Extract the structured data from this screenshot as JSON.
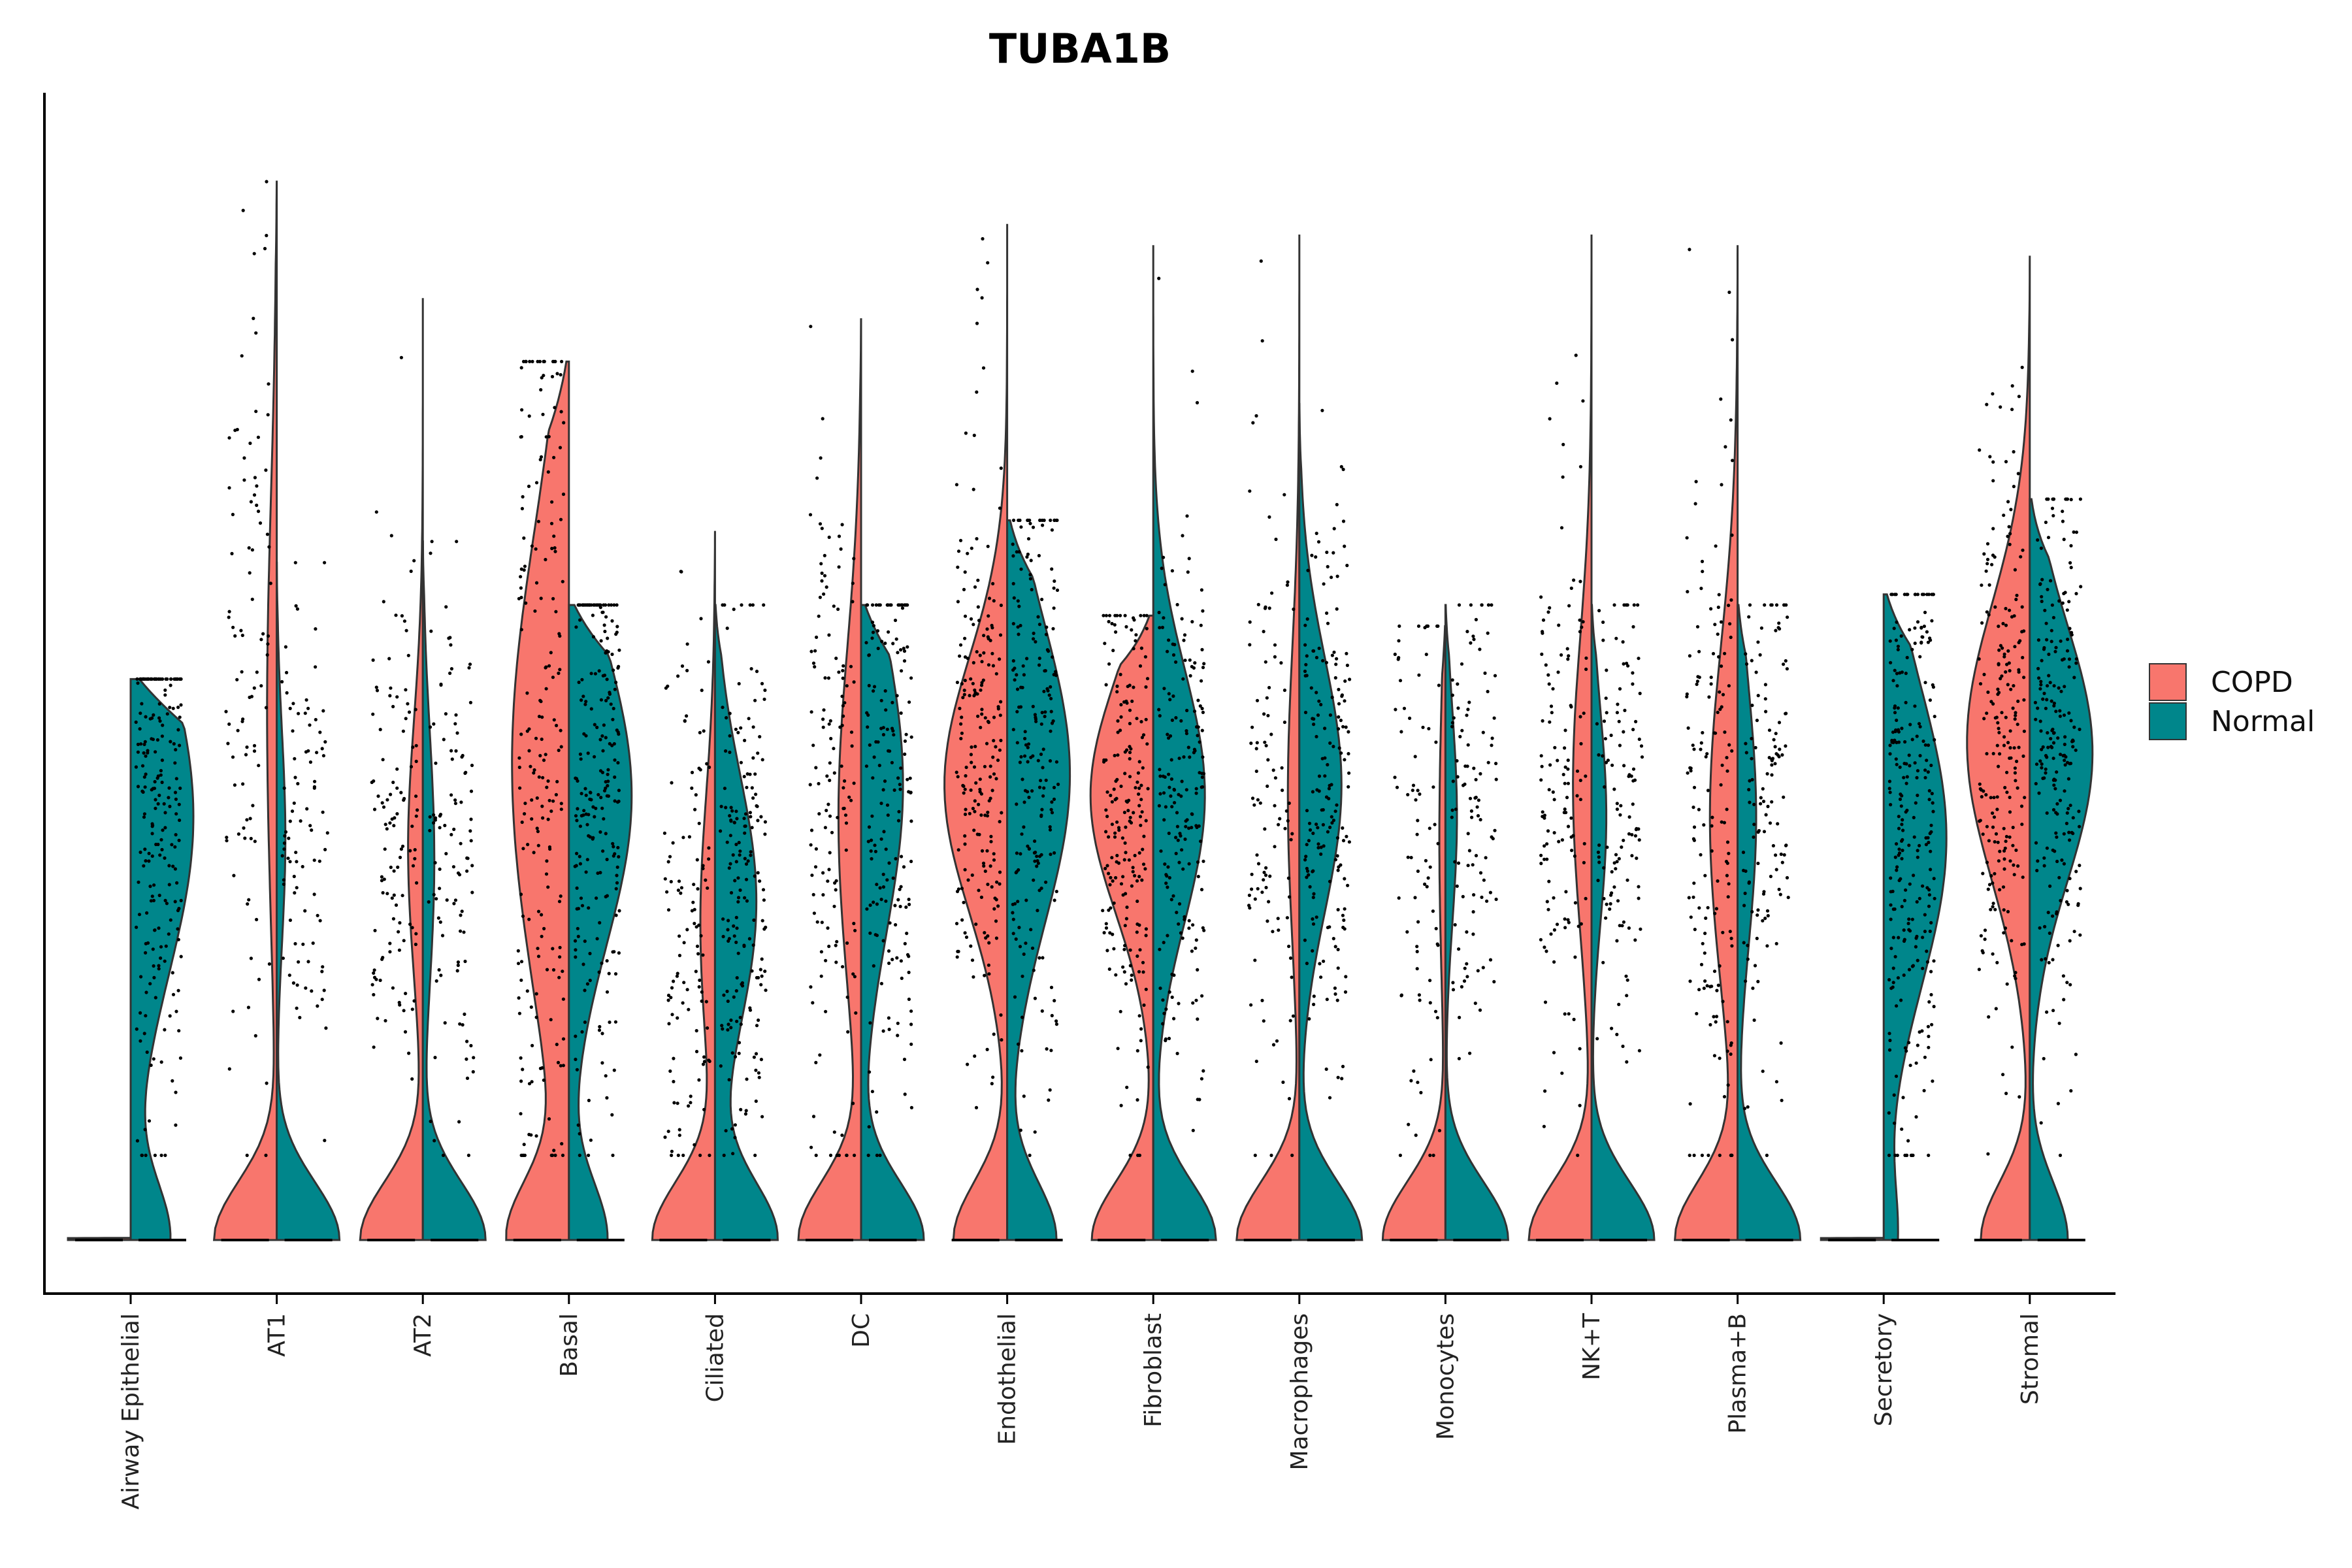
{
  "chart_data": {
    "type": "violin",
    "title": "TUBA1B",
    "xlabel": "",
    "ylabel": "",
    "split_by": "condition",
    "legend_position": "right",
    "grid": false,
    "y_axis_ticks_shown": false,
    "categories": [
      "Airway Epithelial",
      "AT1",
      "AT2",
      "Basal",
      "Ciliated",
      "DC",
      "Endothelial",
      "Fibroblast",
      "Macrophages",
      "Monocytes",
      "NK+T",
      "Plasma+B",
      "Secretory",
      "Stromal"
    ],
    "series": [
      {
        "name": "COPD",
        "color": "#F8766D",
        "groups": [
          {
            "zero_fraction": 1.0,
            "mode": 0.0,
            "spread": 0.0,
            "max": 0.0
          },
          {
            "zero_fraction": 0.78,
            "mode": 0.5,
            "spread": 0.2,
            "max": 1.0
          },
          {
            "zero_fraction": 0.7,
            "mode": 0.37,
            "spread": 0.12,
            "max": 0.89
          },
          {
            "zero_fraction": 0.35,
            "mode": 0.45,
            "spread": 0.22,
            "max": 0.83
          },
          {
            "zero_fraction": 0.7,
            "mode": 0.3,
            "spread": 0.12,
            "max": 0.67
          },
          {
            "zero_fraction": 0.6,
            "mode": 0.4,
            "spread": 0.16,
            "max": 0.87
          },
          {
            "zero_fraction": 0.32,
            "mode": 0.43,
            "spread": 0.12,
            "max": 0.96
          },
          {
            "zero_fraction": 0.35,
            "mode": 0.42,
            "spread": 0.11,
            "max": 0.59
          },
          {
            "zero_fraction": 0.75,
            "mode": 0.42,
            "spread": 0.14,
            "max": 0.95
          },
          {
            "zero_fraction": 0.85,
            "mode": 0.38,
            "spread": 0.14,
            "max": 0.58
          },
          {
            "zero_fraction": 0.65,
            "mode": 0.43,
            "spread": 0.14,
            "max": 0.95
          },
          {
            "zero_fraction": 0.55,
            "mode": 0.4,
            "spread": 0.16,
            "max": 0.94
          },
          {
            "zero_fraction": 1.0,
            "mode": 0.0,
            "spread": 0.0,
            "max": 0.0
          },
          {
            "zero_fraction": 0.3,
            "mode": 0.47,
            "spread": 0.13,
            "max": 0.93
          }
        ]
      },
      {
        "name": "Normal",
        "color": "#00868B",
        "groups": [
          {
            "zero_fraction": 0.25,
            "mode": 0.4,
            "spread": 0.15,
            "max": 0.53
          },
          {
            "zero_fraction": 0.8,
            "mode": 0.38,
            "spread": 0.1,
            "max": 0.64
          },
          {
            "zero_fraction": 0.75,
            "mode": 0.36,
            "spread": 0.12,
            "max": 0.66
          },
          {
            "zero_fraction": 0.25,
            "mode": 0.42,
            "spread": 0.14,
            "max": 0.6
          },
          {
            "zero_fraction": 0.45,
            "mode": 0.32,
            "spread": 0.12,
            "max": 0.6
          },
          {
            "zero_fraction": 0.45,
            "mode": 0.43,
            "spread": 0.14,
            "max": 0.6
          },
          {
            "zero_fraction": 0.3,
            "mode": 0.44,
            "spread": 0.14,
            "max": 0.68
          },
          {
            "zero_fraction": 0.4,
            "mode": 0.42,
            "spread": 0.12,
            "max": 0.94
          },
          {
            "zero_fraction": 0.45,
            "mode": 0.43,
            "spread": 0.12,
            "max": 0.79
          },
          {
            "zero_fraction": 0.75,
            "mode": 0.4,
            "spread": 0.1,
            "max": 0.6
          },
          {
            "zero_fraction": 0.7,
            "mode": 0.4,
            "spread": 0.1,
            "max": 0.6
          },
          {
            "zero_fraction": 0.65,
            "mode": 0.4,
            "spread": 0.12,
            "max": 0.6
          },
          {
            "zero_fraction": 0.1,
            "mode": 0.38,
            "spread": 0.14,
            "max": 0.61
          },
          {
            "zero_fraction": 0.25,
            "mode": 0.46,
            "spread": 0.12,
            "max": 0.7
          }
        ]
      }
    ]
  }
}
